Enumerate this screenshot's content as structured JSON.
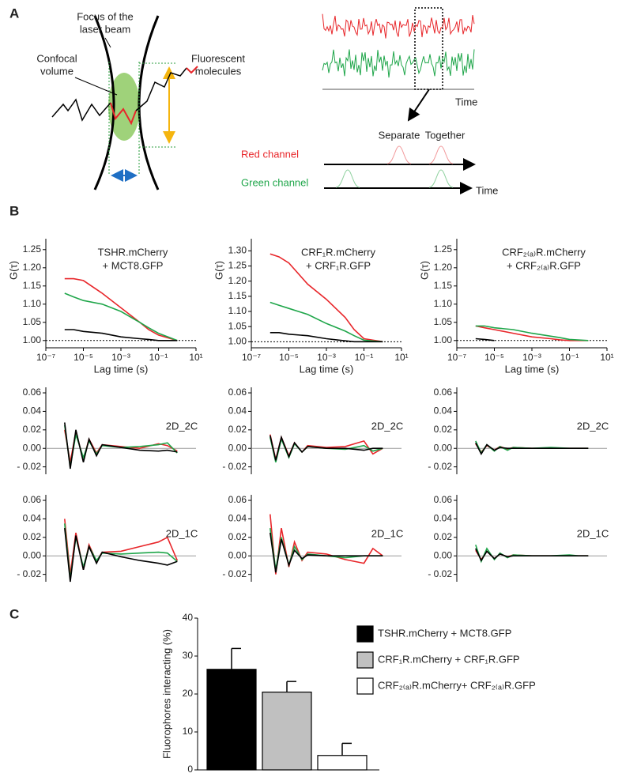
{
  "panel_labels": [
    "A",
    "B",
    "C"
  ],
  "diagram": {
    "focus_label": [
      "Focus of the",
      "laser beam"
    ],
    "confocal_label": [
      "Confocal",
      "volume"
    ],
    "fluorescent_label": [
      "Fluorescent",
      "molecules"
    ],
    "trace_time_label": "Time",
    "separate_label": "Separate",
    "together_label": "Together",
    "red_channel_label": "Red channel",
    "green_channel_label": "Green channel",
    "channel_time_label": "Time"
  },
  "chart_data": [
    {
      "type": "line",
      "title": [
        "TSHR.mCherry",
        "+ MCT8.GFP"
      ],
      "xlabel": "Lag time (s)",
      "ylabel": "G(τ)",
      "log_x": true,
      "x": [
        1e-06,
        3e-06,
        1e-05,
        0.0001,
        0.001,
        0.01,
        0.03,
        0.1,
        1
      ],
      "series": [
        {
          "color": "#e8262a",
          "values": [
            1.17,
            1.17,
            1.165,
            1.13,
            1.09,
            1.05,
            1.03,
            1.015,
            1.0
          ]
        },
        {
          "color": "#1fa64a",
          "values": [
            1.13,
            1.12,
            1.11,
            1.1,
            1.08,
            1.05,
            1.035,
            1.02,
            1.0
          ]
        },
        {
          "color": "#000000",
          "values": [
            1.03,
            1.03,
            1.025,
            1.02,
            1.01,
            1.005,
            1.003,
            1.0,
            1.0
          ]
        }
      ],
      "xlim": [
        1e-07,
        10
      ],
      "xticks": [
        {
          "value": 1e-07,
          "label": "10⁻⁷"
        },
        {
          "value": 1e-05,
          "label": "10⁻⁵"
        },
        {
          "value": 0.001,
          "label": "10⁻³"
        },
        {
          "value": 0.1,
          "label": "10⁻¹"
        },
        {
          "value": 10,
          "label": "10¹"
        }
      ],
      "ylim": [
        0.98,
        1.28
      ],
      "yticks": [
        {
          "value": 1,
          "label": "1.00"
        },
        1.05,
        {
          "value": 1.1,
          "label": "1.10"
        },
        1.15,
        {
          "value": 1.2,
          "label": "1.20"
        },
        1.25
      ],
      "hline": 1
    },
    {
      "type": "line",
      "title": [
        "CRF₁R.mCherry",
        "+ CRF₁R.GFP"
      ],
      "xlabel": "Lag time (s)",
      "ylabel": "G(τ)",
      "log_x": true,
      "x": [
        1e-06,
        3e-06,
        1e-05,
        0.0001,
        0.001,
        0.01,
        0.03,
        0.1,
        1
      ],
      "series": [
        {
          "color": "#e8262a",
          "values": [
            1.29,
            1.28,
            1.26,
            1.19,
            1.14,
            1.08,
            1.04,
            1.01,
            1.0
          ]
        },
        {
          "color": "#1fa64a",
          "values": [
            1.13,
            1.12,
            1.11,
            1.09,
            1.06,
            1.035,
            1.02,
            1.005,
            1.0
          ]
        },
        {
          "color": "#000000",
          "values": [
            1.03,
            1.03,
            1.025,
            1.02,
            1.01,
            1.003,
            1.0,
            1.0,
            1.0
          ]
        }
      ],
      "xlim": [
        1e-07,
        10
      ],
      "xticks": [
        {
          "value": 1e-07,
          "label": "10⁻⁷"
        },
        {
          "value": 1e-05,
          "label": "10⁻⁵"
        },
        {
          "value": 0.001,
          "label": "10⁻³"
        },
        {
          "value": 0.1,
          "label": "10⁻¹"
        },
        {
          "value": 10,
          "label": "10¹"
        }
      ],
      "ylim": [
        0.98,
        1.34
      ],
      "yticks": [
        {
          "value": 1,
          "label": "1.00"
        },
        1.05,
        {
          "value": 1.1,
          "label": "1.10"
        },
        1.15,
        {
          "value": 1.2,
          "label": "1.20"
        },
        1.25,
        {
          "value": 1.3,
          "label": "1.30"
        }
      ],
      "hline": 1
    },
    {
      "type": "line",
      "title": [
        "CRF₂₍ₐ₎R.mCherry",
        "+ CRF₂₍ₐ₎R.GFP"
      ],
      "xlabel": "Lag time (s)",
      "ylabel": "G(τ)",
      "log_x": true,
      "x": [
        1e-06,
        3e-06,
        1e-05,
        0.0001,
        0.001,
        0.01,
        0.03,
        0.1,
        1
      ],
      "series": [
        {
          "color": "#e8262a",
          "values": [
            1.04,
            1.035,
            1.03,
            1.02,
            1.01,
            1.005,
            1.002,
            1.0,
            1.0
          ]
        },
        {
          "color": "#1fa64a",
          "values": [
            1.04,
            1.04,
            1.035,
            1.03,
            1.02,
            1.012,
            1.008,
            1.003,
            1.0
          ]
        },
        {
          "color": "#000000",
          "values": [
            1.005,
            1.003,
            1.0,
            null,
            null,
            null,
            null,
            null,
            null
          ]
        }
      ],
      "xlim": [
        1e-07,
        10
      ],
      "xticks": [
        {
          "value": 1e-07,
          "label": "10⁻⁷"
        },
        {
          "value": 1e-05,
          "label": "10⁻⁵"
        },
        {
          "value": 0.001,
          "label": "10⁻³"
        },
        {
          "value": 0.1,
          "label": "10⁻¹"
        },
        {
          "value": 10,
          "label": "10¹"
        }
      ],
      "ylim": [
        0.98,
        1.28
      ],
      "yticks": [
        {
          "value": 1,
          "label": "1.00"
        },
        1.05,
        {
          "value": 1.1,
          "label": "1.10"
        },
        1.15,
        {
          "value": 1.2,
          "label": "1.20"
        },
        1.25
      ],
      "hline": 1
    },
    {
      "type": "residual",
      "annotation": "2D_2C",
      "log_x": true,
      "x": [
        1e-06,
        2e-06,
        4e-06,
        1e-05,
        2e-05,
        5e-05,
        0.0001,
        0.001,
        0.01,
        0.1,
        0.3,
        1
      ],
      "series": [
        {
          "color": "#e8262a",
          "values": [
            0.02,
            -0.015,
            0.018,
            -0.012,
            0.01,
            -0.005,
            0.004,
            0.002,
            0,
            0.005,
            0.003,
            -0.003
          ]
        },
        {
          "color": "#1fa64a",
          "values": [
            0.025,
            -0.02,
            0.015,
            -0.01,
            0.008,
            -0.006,
            0.003,
            0.001,
            0.002,
            0.004,
            0.006,
            -0.005
          ]
        },
        {
          "color": "#000000",
          "values": [
            0.028,
            -0.022,
            0.02,
            -0.015,
            0.01,
            -0.008,
            0.004,
            0.001,
            -0.002,
            -0.003,
            -0.002,
            -0.004
          ]
        }
      ],
      "xlim": [
        1e-07,
        10
      ],
      "ylim": [
        -0.028,
        0.066
      ],
      "yticks": [
        {
          "value": -0.02,
          "label": "- 0.02"
        },
        {
          "value": 0,
          "label": "0.00"
        },
        0.02,
        0.04,
        0.06
      ],
      "hline": 0
    },
    {
      "type": "residual",
      "annotation": "2D_2C",
      "log_x": true,
      "x": [
        1e-06,
        2e-06,
        4e-06,
        1e-05,
        2e-05,
        5e-05,
        0.0001,
        0.001,
        0.01,
        0.1,
        0.3,
        1
      ],
      "series": [
        {
          "color": "#e8262a",
          "values": [
            0.015,
            -0.012,
            0.012,
            -0.008,
            0.006,
            -0.004,
            0.003,
            0.001,
            0.002,
            0.008,
            -0.006,
            0
          ]
        },
        {
          "color": "#1fa64a",
          "values": [
            0.012,
            -0.015,
            0.01,
            -0.01,
            0.005,
            -0.004,
            0.002,
            0,
            -0.001,
            0.003,
            -0.003,
            0
          ]
        },
        {
          "color": "#000000",
          "values": [
            0.014,
            -0.013,
            0.012,
            -0.009,
            0.006,
            -0.004,
            0.002,
            0,
            0,
            -0.002,
            0,
            0
          ]
        }
      ],
      "xlim": [
        1e-07,
        10
      ],
      "ylim": [
        -0.028,
        0.066
      ],
      "yticks": [
        {
          "value": -0.02,
          "label": "- 0.02"
        },
        {
          "value": 0,
          "label": "0.00"
        },
        0.02,
        0.04,
        0.06
      ],
      "hline": 0
    },
    {
      "type": "residual",
      "annotation": "2D_2C",
      "log_x": true,
      "x": [
        1e-06,
        2e-06,
        4e-06,
        1e-05,
        2e-05,
        5e-05,
        0.0001,
        0.001,
        0.01,
        0.1,
        0.3,
        1
      ],
      "series": [
        {
          "color": "#e8262a",
          "values": [
            0.005,
            -0.004,
            0.003,
            -0.002,
            0.002,
            -0.001,
            0.001,
            0,
            0,
            0,
            0,
            0
          ]
        },
        {
          "color": "#1fa64a",
          "values": [
            0.008,
            -0.005,
            0.004,
            -0.003,
            0.002,
            -0.002,
            0.001,
            0,
            0.001,
            0,
            0,
            0
          ]
        },
        {
          "color": "#000000",
          "values": [
            0.006,
            -0.006,
            0.004,
            -0.002,
            0.001,
            0,
            0,
            0,
            0,
            0,
            0,
            0
          ]
        }
      ],
      "xlim": [
        1e-07,
        10
      ],
      "ylim": [
        -0.028,
        0.066
      ],
      "yticks": [
        {
          "value": -0.02,
          "label": "- 0.02"
        },
        {
          "value": 0,
          "label": "0.00"
        },
        0.02,
        0.04,
        0.06
      ],
      "hline": 0
    },
    {
      "type": "residual",
      "annotation": "2D_1C",
      "log_x": true,
      "x": [
        1e-06,
        2e-06,
        4e-06,
        1e-05,
        2e-05,
        5e-05,
        0.0001,
        0.001,
        0.01,
        0.1,
        0.3,
        1
      ],
      "series": [
        {
          "color": "#e8262a",
          "values": [
            0.04,
            -0.02,
            0.025,
            -0.015,
            0.012,
            -0.006,
            0.004,
            0.005,
            0.01,
            0.015,
            0.02,
            -0.005
          ]
        },
        {
          "color": "#1fa64a",
          "values": [
            0.035,
            -0.025,
            0.02,
            -0.012,
            0.01,
            -0.005,
            0.003,
            0.002,
            0.003,
            0.004,
            0.003,
            -0.006
          ]
        },
        {
          "color": "#000000",
          "values": [
            0.03,
            -0.028,
            0.022,
            -0.015,
            0.01,
            -0.008,
            0.004,
            -0.001,
            -0.005,
            -0.008,
            -0.01,
            -0.006
          ]
        }
      ],
      "xlim": [
        1e-07,
        10
      ],
      "ylim": [
        -0.028,
        0.066
      ],
      "yticks": [
        {
          "value": -0.02,
          "label": "- 0.02"
        },
        {
          "value": 0,
          "label": "0.00"
        },
        0.02,
        0.04,
        0.06
      ],
      "hline": 0
    },
    {
      "type": "residual",
      "annotation": "2D_1C",
      "log_x": true,
      "x": [
        1e-06,
        2e-06,
        4e-06,
        1e-05,
        2e-05,
        5e-05,
        0.0001,
        0.001,
        0.01,
        0.1,
        0.3,
        1
      ],
      "series": [
        {
          "color": "#e8262a",
          "values": [
            0.045,
            -0.02,
            0.03,
            -0.012,
            0.015,
            -0.005,
            0.004,
            0.002,
            -0.004,
            -0.008,
            0.008,
            0
          ]
        },
        {
          "color": "#1fa64a",
          "values": [
            0.03,
            -0.015,
            0.02,
            -0.01,
            0.01,
            -0.004,
            0.002,
            0,
            -0.002,
            0,
            0,
            0
          ]
        },
        {
          "color": "#000000",
          "values": [
            0.025,
            -0.018,
            0.018,
            -0.01,
            0.006,
            -0.003,
            0.001,
            0,
            0,
            0,
            0,
            0
          ]
        }
      ],
      "xlim": [
        1e-07,
        10
      ],
      "ylim": [
        -0.028,
        0.066
      ],
      "yticks": [
        {
          "value": -0.02,
          "label": "- 0.02"
        },
        {
          "value": 0,
          "label": "0.00"
        },
        0.02,
        0.04,
        0.06
      ],
      "hline": 0
    },
    {
      "type": "residual",
      "annotation": "2D_1C",
      "log_x": true,
      "x": [
        1e-06,
        2e-06,
        4e-06,
        1e-05,
        2e-05,
        5e-05,
        0.0001,
        0.001,
        0.01,
        0.1,
        0.3,
        1
      ],
      "series": [
        {
          "color": "#e8262a",
          "values": [
            0.006,
            -0.004,
            0.005,
            -0.003,
            0.002,
            -0.001,
            0.001,
            0,
            0,
            0,
            0,
            0
          ]
        },
        {
          "color": "#1fa64a",
          "values": [
            0.012,
            -0.006,
            0.008,
            -0.004,
            0.003,
            -0.002,
            0.001,
            0,
            0,
            0.001,
            0,
            0
          ]
        },
        {
          "color": "#000000",
          "values": [
            0.008,
            -0.005,
            0.005,
            -0.003,
            0.002,
            -0.001,
            0,
            0,
            0,
            0,
            0,
            0
          ]
        }
      ],
      "xlim": [
        1e-07,
        10
      ],
      "ylim": [
        -0.028,
        0.066
      ],
      "yticks": [
        {
          "value": -0.02,
          "label": "- 0.02"
        },
        {
          "value": 0,
          "label": "0.00"
        },
        0.02,
        0.04,
        0.06
      ],
      "hline": 0
    },
    {
      "type": "bar",
      "ylabel": "Fluorophores interacting (%)",
      "categories": [
        null
      ],
      "series": [
        {
          "name": "TSHR.mCherry + MCT8.GFP",
          "color": "#000000",
          "values": [
            26.5
          ],
          "errors": [
            5.5
          ]
        },
        {
          "name": "CRF₁R.mCherry + CRF₁R.GFP",
          "color": "#c0c0c0",
          "values": [
            20.5
          ],
          "errors": [
            2.8
          ]
        },
        {
          "name": "CRF₂₍ₐ₎R.mCherry+ CRF₂₍ₐ₎R.GFP",
          "color": "#ffffff",
          "values": [
            3.8
          ],
          "errors": [
            3.2
          ]
        }
      ],
      "ylim": [
        0,
        40
      ],
      "yticks": [
        0,
        10,
        20,
        30,
        40
      ]
    }
  ]
}
